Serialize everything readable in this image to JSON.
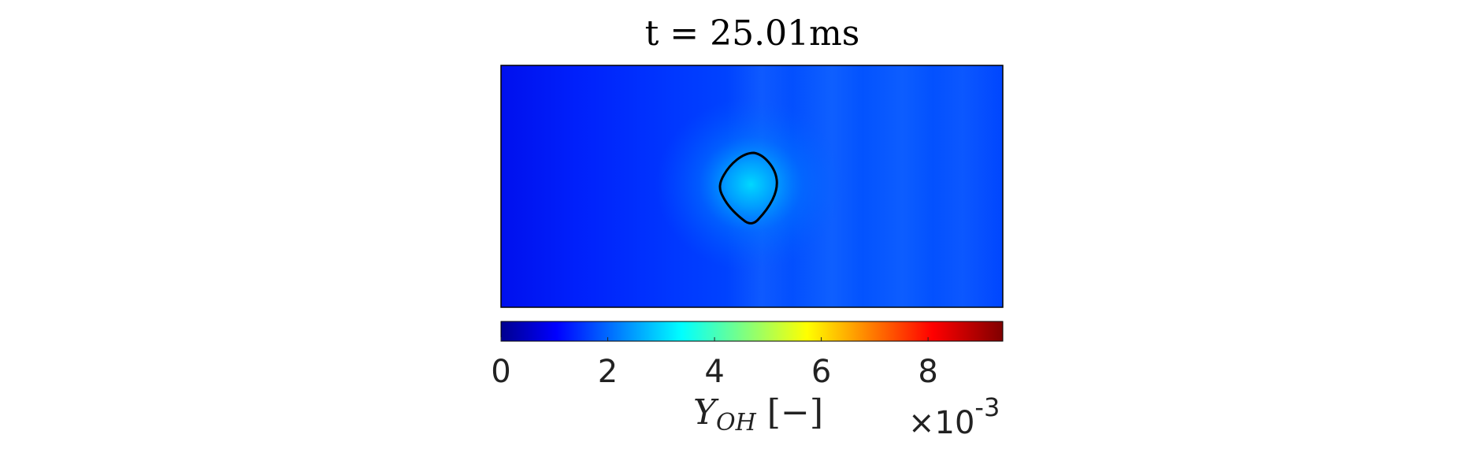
{
  "chart_data": {
    "type": "heatmap",
    "title": "t = 25.01ms",
    "field": "Y_OH mass fraction (pseudocolor field)",
    "colormap": "jet",
    "colorbar": {
      "placement": "bottom",
      "range": [
        0,
        9.4
      ],
      "ticks": [
        0,
        2,
        4,
        6,
        8
      ],
      "tick_labels": [
        "0",
        "2",
        "4",
        "6",
        "8"
      ],
      "label": {
        "main": "Y",
        "sub": "OH",
        "suffix": " [−]"
      },
      "exponent": {
        "prefix": "×10",
        "power": "-3"
      }
    },
    "field_values": {
      "background": 1.5,
      "hot_spot_peak": 3.6,
      "left_edge": 0.9
    },
    "contour": {
      "color": "#000000",
      "description": "closed iso-line around hot spot"
    }
  },
  "colors": {
    "background": "#ffffff",
    "contour": "#000000",
    "text": "#222222"
  }
}
